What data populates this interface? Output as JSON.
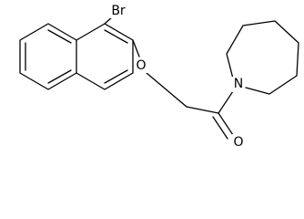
{
  "atoms": [
    {
      "label": "Br"
    },
    {
      "label": "O"
    },
    {
      "label": "O"
    },
    {
      "label": "N"
    }
  ]
}
